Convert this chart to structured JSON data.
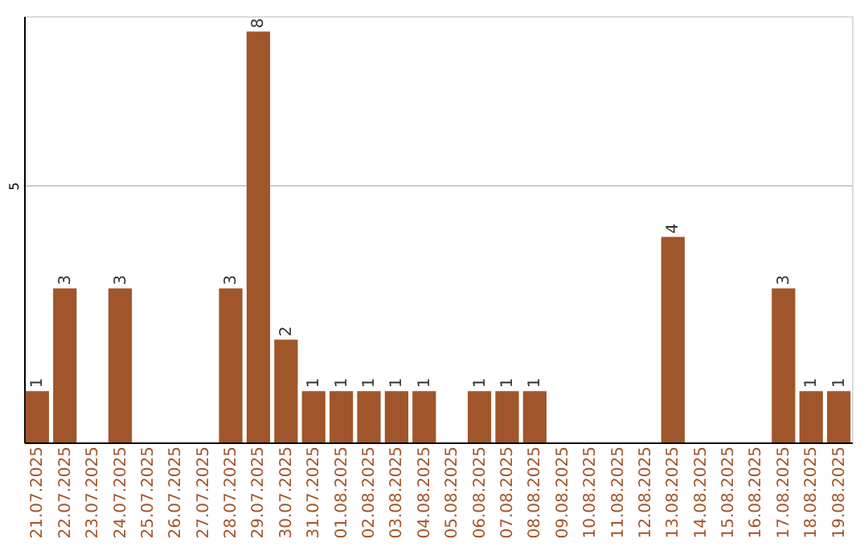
{
  "chart_data": {
    "type": "bar",
    "categories": [
      "21.07.2025",
      "22.07.2025",
      "23.07.2025",
      "24.07.2025",
      "25.07.2025",
      "26.07.2025",
      "27.07.2025",
      "28.07.2025",
      "29.07.2025",
      "30.07.2025",
      "31.07.2025",
      "01.08.2025",
      "02.08.2025",
      "03.08.2025",
      "04.08.2025",
      "05.08.2025",
      "06.08.2025",
      "07.08.2025",
      "08.08.2025",
      "09.08.2025",
      "10.08.2025",
      "11.08.2025",
      "12.08.2025",
      "13.08.2025",
      "14.08.2025",
      "15.08.2025",
      "16.08.2025",
      "17.08.2025",
      "18.08.2025",
      "19.08.2025"
    ],
    "values": [
      1,
      3,
      0,
      3,
      0,
      0,
      0,
      3,
      8,
      2,
      1,
      1,
      1,
      1,
      1,
      0,
      1,
      1,
      1,
      0,
      0,
      0,
      0,
      4,
      0,
      0,
      0,
      3,
      1,
      1
    ],
    "value_labels": [
      "1",
      "3",
      null,
      "3",
      null,
      null,
      null,
      "3",
      "8",
      "2",
      "1",
      "1",
      "1",
      "1",
      "1",
      null,
      "1",
      "1",
      "1",
      null,
      null,
      null,
      null,
      "4",
      null,
      null,
      null,
      "3",
      "1",
      "1"
    ],
    "color": "#a0562a",
    "ylim": [
      0,
      8.3
    ],
    "yticks": [
      5
    ],
    "grid": "y"
  }
}
